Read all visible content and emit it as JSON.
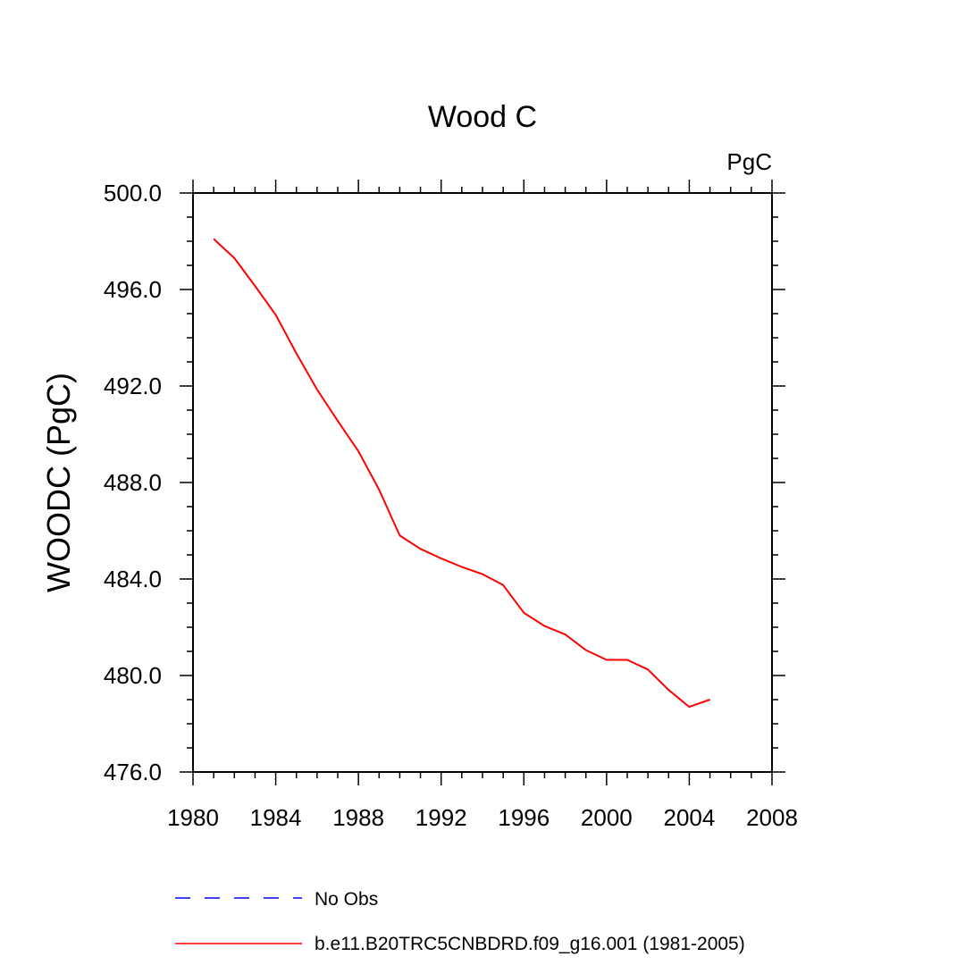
{
  "chart_data": {
    "type": "line",
    "title": "Wood C",
    "units_label": "PgC",
    "ylabel": "WOODC  (PgC)",
    "xlabel": "",
    "xlim": [
      1980,
      2008
    ],
    "ylim": [
      476.0,
      500.0
    ],
    "x_ticks": [
      "1980",
      "1984",
      "1988",
      "1992",
      "1996",
      "2000",
      "2004",
      "2008"
    ],
    "y_ticks": [
      "476.0",
      "480.0",
      "484.0",
      "488.0",
      "492.0",
      "496.0",
      "500.0"
    ],
    "series": [
      {
        "name": "b.e11.B20TRC5CNBDRD.f09_g16.001 (1981-2005)",
        "color": "#ff0000",
        "x": [
          1981,
          1982,
          1983,
          1984,
          1985,
          1986,
          1987,
          1988,
          1989,
          1990,
          1991,
          1992,
          1993,
          1994,
          1995,
          1996,
          1997,
          1998,
          1999,
          2000,
          2001,
          2002,
          2003,
          2004,
          2005
        ],
        "values": [
          498.1,
          497.3,
          496.15,
          494.95,
          493.35,
          491.85,
          490.55,
          489.3,
          487.7,
          485.8,
          485.25,
          484.85,
          484.5,
          484.2,
          483.75,
          482.6,
          482.05,
          481.7,
          481.05,
          480.65,
          480.65,
          480.25,
          479.4,
          478.7,
          479.0
        ]
      }
    ],
    "legend": [
      {
        "label": "No Obs",
        "color": "#0000ff",
        "style": "dashed"
      },
      {
        "label": "b.e11.B20TRC5CNBDRD.f09_g16.001 (1981-2005)",
        "color": "#ff0000",
        "style": "solid"
      }
    ]
  }
}
